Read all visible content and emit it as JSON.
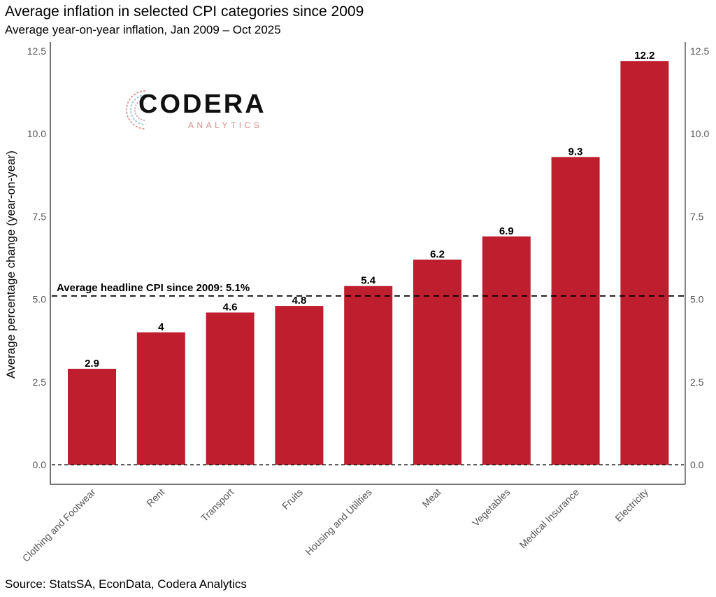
{
  "chart_data": {
    "type": "bar",
    "title": "Average inflation in selected CPI categories since 2009",
    "subtitle": "Average year-on-year inflation, Jan 2009 – Oct 2025",
    "xlabel": "",
    "ylabel": "Average percentage change (year-on-year)",
    "categories": [
      "Clothing and Footwear",
      "Rent",
      "Transport",
      "Fruits",
      "Housing and Utilities",
      "Meat",
      "Vegetables",
      "Medical Insurance",
      "Electricity"
    ],
    "values": [
      2.9,
      4.0,
      4.6,
      4.8,
      5.4,
      6.2,
      6.9,
      9.3,
      12.2
    ],
    "data_labels": [
      "2.9",
      "4",
      "4.6",
      "4.8",
      "5.4",
      "6.2",
      "6.9",
      "9.3",
      "12.2"
    ],
    "ylim": [
      0,
      12.5
    ],
    "yticks": [
      0.0,
      2.5,
      5.0,
      7.5,
      10.0,
      12.5
    ],
    "ytick_labels": [
      "0.0",
      "2.5",
      "5.0",
      "7.5",
      "10.0",
      "12.5"
    ],
    "secondary_y_axis": true,
    "grid": false,
    "bar_color": "#be1e2d",
    "reference_lines": [
      {
        "value": 5.1,
        "style": "dashed",
        "label": "Average headline CPI since 2009: 5.1%"
      },
      {
        "value": 0.0,
        "style": "dashed",
        "label": ""
      }
    ],
    "source": "Source: StatsSA, EconData, Codera Analytics"
  },
  "logo": {
    "name": "CODERA",
    "sub": "ANALYTICS"
  }
}
